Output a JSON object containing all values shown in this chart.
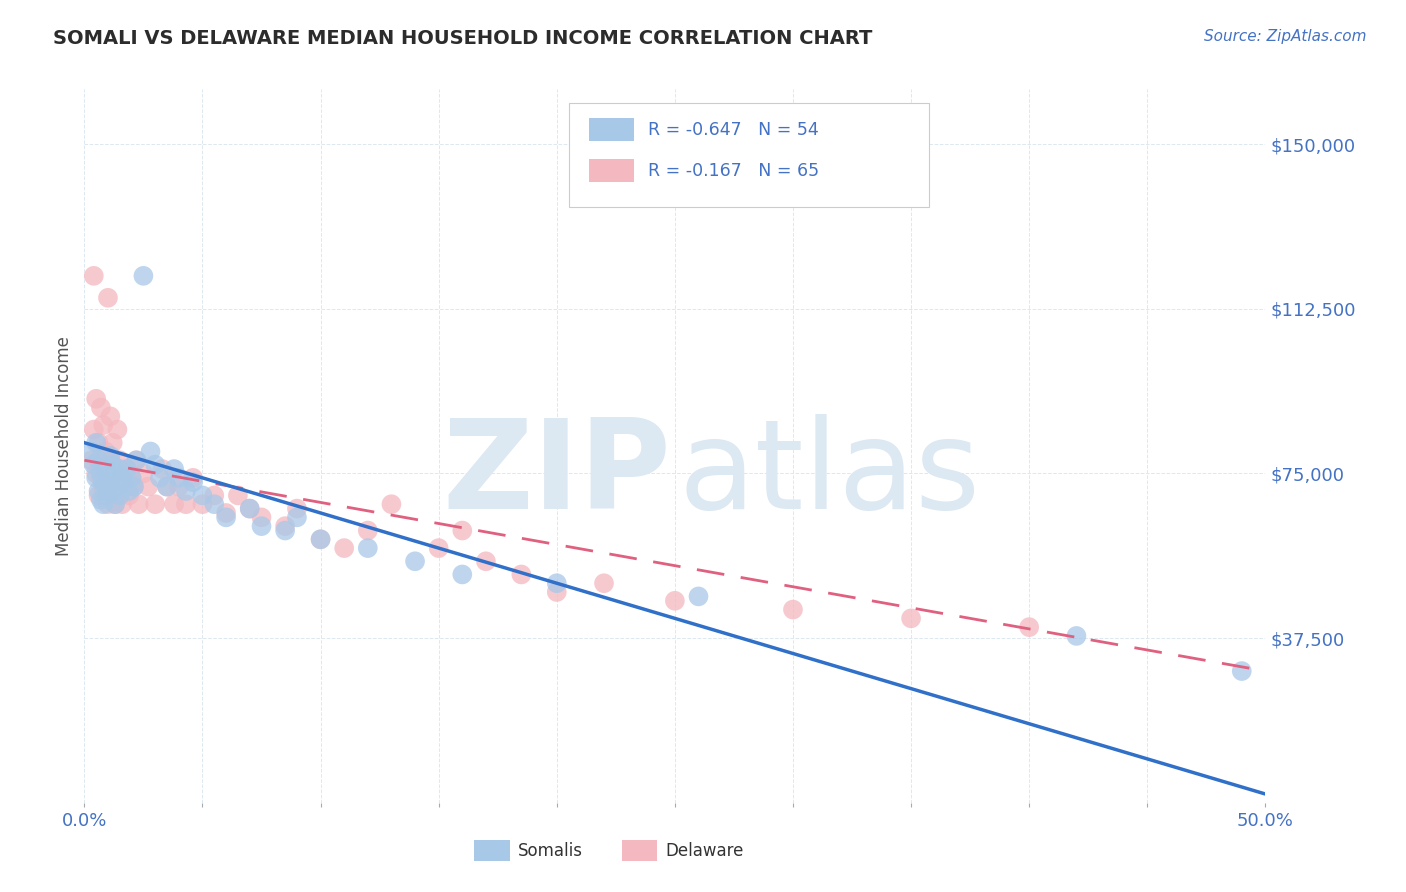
{
  "title": "SOMALI VS DELAWARE MEDIAN HOUSEHOLD INCOME CORRELATION CHART",
  "source_text": "Source: ZipAtlas.com",
  "ylabel": "Median Household Income",
  "xlim": [
    0.0,
    0.5
  ],
  "ylim": [
    0,
    162500
  ],
  "ytick_vals": [
    0,
    37500,
    75000,
    112500,
    150000
  ],
  "ytick_labels": [
    "",
    "$37,500",
    "$75,000",
    "$112,500",
    "$150,000"
  ],
  "xtick_vals": [
    0.0,
    0.05,
    0.1,
    0.15,
    0.2,
    0.25,
    0.3,
    0.35,
    0.4,
    0.45,
    0.5
  ],
  "xtick_show": [
    0.0,
    0.5
  ],
  "xtick_labels_show": [
    "0.0%",
    "50.0%"
  ],
  "somali_color": "#a8c8e8",
  "delaware_color": "#f4b8c0",
  "somali_R": -0.647,
  "somali_N": 54,
  "delaware_R": -0.167,
  "delaware_N": 65,
  "title_color": "#2c2c2c",
  "axis_label_color": "#555555",
  "tick_label_color": "#4472c4",
  "grid_color": "#dde8f0",
  "background_color": "#ffffff",
  "watermark_color": "#dce8f2",
  "somali_line_color": "#3070c8",
  "delaware_line_color": "#e06080",
  "somali_x": [
    0.003,
    0.004,
    0.005,
    0.005,
    0.006,
    0.006,
    0.007,
    0.007,
    0.008,
    0.008,
    0.009,
    0.009,
    0.01,
    0.01,
    0.011,
    0.011,
    0.012,
    0.012,
    0.013,
    0.013,
    0.014,
    0.015,
    0.015,
    0.016,
    0.017,
    0.018,
    0.019,
    0.02,
    0.021,
    0.022,
    0.025,
    0.028,
    0.03,
    0.032,
    0.035,
    0.038,
    0.04,
    0.043,
    0.046,
    0.05,
    0.055,
    0.06,
    0.07,
    0.075,
    0.085,
    0.09,
    0.1,
    0.12,
    0.14,
    0.16,
    0.2,
    0.26,
    0.42,
    0.49
  ],
  "somali_y": [
    80000,
    77000,
    82000,
    74000,
    78000,
    71000,
    75000,
    69000,
    73000,
    68000,
    76000,
    72000,
    74000,
    70000,
    79000,
    73000,
    77000,
    71000,
    75000,
    68000,
    72000,
    76000,
    70000,
    74000,
    73000,
    76000,
    71000,
    74000,
    72000,
    78000,
    120000,
    80000,
    77000,
    74000,
    72000,
    76000,
    74000,
    71000,
    73000,
    70000,
    68000,
    65000,
    67000,
    63000,
    62000,
    65000,
    60000,
    58000,
    55000,
    52000,
    50000,
    47000,
    38000,
    30000
  ],
  "delaware_x": [
    0.003,
    0.004,
    0.004,
    0.005,
    0.005,
    0.006,
    0.006,
    0.007,
    0.007,
    0.008,
    0.008,
    0.009,
    0.009,
    0.01,
    0.01,
    0.011,
    0.011,
    0.012,
    0.012,
    0.013,
    0.013,
    0.014,
    0.014,
    0.015,
    0.015,
    0.016,
    0.016,
    0.017,
    0.018,
    0.019,
    0.02,
    0.021,
    0.022,
    0.023,
    0.025,
    0.027,
    0.03,
    0.033,
    0.035,
    0.038,
    0.04,
    0.043,
    0.046,
    0.05,
    0.055,
    0.06,
    0.065,
    0.07,
    0.075,
    0.085,
    0.09,
    0.1,
    0.11,
    0.12,
    0.13,
    0.15,
    0.16,
    0.17,
    0.185,
    0.2,
    0.22,
    0.25,
    0.3,
    0.35,
    0.4
  ],
  "delaware_y": [
    78000,
    85000,
    120000,
    75000,
    92000,
    70000,
    82000,
    74000,
    90000,
    72000,
    86000,
    70000,
    80000,
    68000,
    115000,
    78000,
    88000,
    72000,
    82000,
    68000,
    76000,
    72000,
    85000,
    70000,
    78000,
    68000,
    74000,
    72000,
    76000,
    70000,
    74000,
    72000,
    78000,
    68000,
    75000,
    72000,
    68000,
    76000,
    72000,
    68000,
    72000,
    68000,
    74000,
    68000,
    70000,
    66000,
    70000,
    67000,
    65000,
    63000,
    67000,
    60000,
    58000,
    62000,
    68000,
    58000,
    62000,
    55000,
    52000,
    48000,
    50000,
    46000,
    44000,
    42000,
    40000
  ]
}
